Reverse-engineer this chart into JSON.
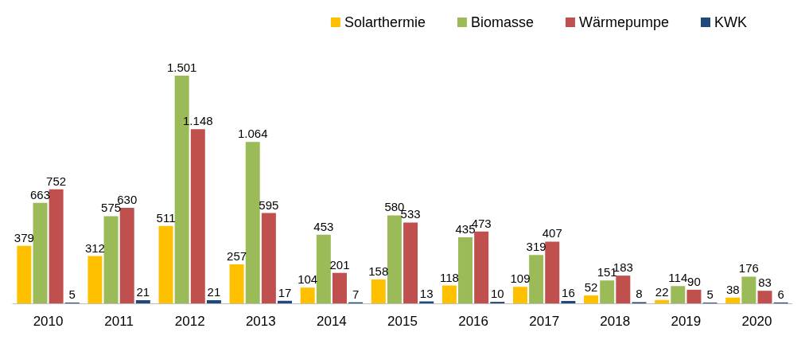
{
  "chart_data": {
    "type": "bar",
    "categories": [
      "2010",
      "2011",
      "2012",
      "2013",
      "2014",
      "2015",
      "2016",
      "2017",
      "2018",
      "2019",
      "2020"
    ],
    "series": [
      {
        "name": "Solarthermie",
        "color": "#ffc000",
        "values": [
          379,
          312,
          511,
          257,
          104,
          158,
          118,
          109,
          52,
          22,
          38
        ],
        "value_labels": [
          "379",
          "312",
          "511",
          "257",
          "104",
          "158",
          "118",
          "109",
          "52",
          "22",
          "38"
        ]
      },
      {
        "name": "Biomasse",
        "color": "#9bbb59",
        "values": [
          663,
          575,
          1501,
          1064,
          453,
          580,
          435,
          319,
          151,
          114,
          176
        ],
        "value_labels": [
          "663",
          "575",
          "1.501",
          "1.064",
          "453",
          "580",
          "435",
          "319",
          "151",
          "114",
          "176"
        ]
      },
      {
        "name": "Wärmepumpe",
        "color": "#c0504d",
        "values": [
          752,
          630,
          1148,
          595,
          201,
          533,
          473,
          407,
          183,
          90,
          83
        ],
        "value_labels": [
          "752",
          "630",
          "1.148",
          "595",
          "201",
          "533",
          "473",
          "407",
          "183",
          "90",
          "83"
        ]
      },
      {
        "name": "KWK",
        "color": "#1f497d",
        "values": [
          5,
          21,
          21,
          17,
          7,
          13,
          10,
          16,
          8,
          5,
          6
        ],
        "value_labels": [
          "5",
          "21",
          "21",
          "17",
          "7",
          "13",
          "10",
          "16",
          "8",
          "5",
          "6"
        ]
      }
    ],
    "legend": "top right",
    "grid": false
  }
}
